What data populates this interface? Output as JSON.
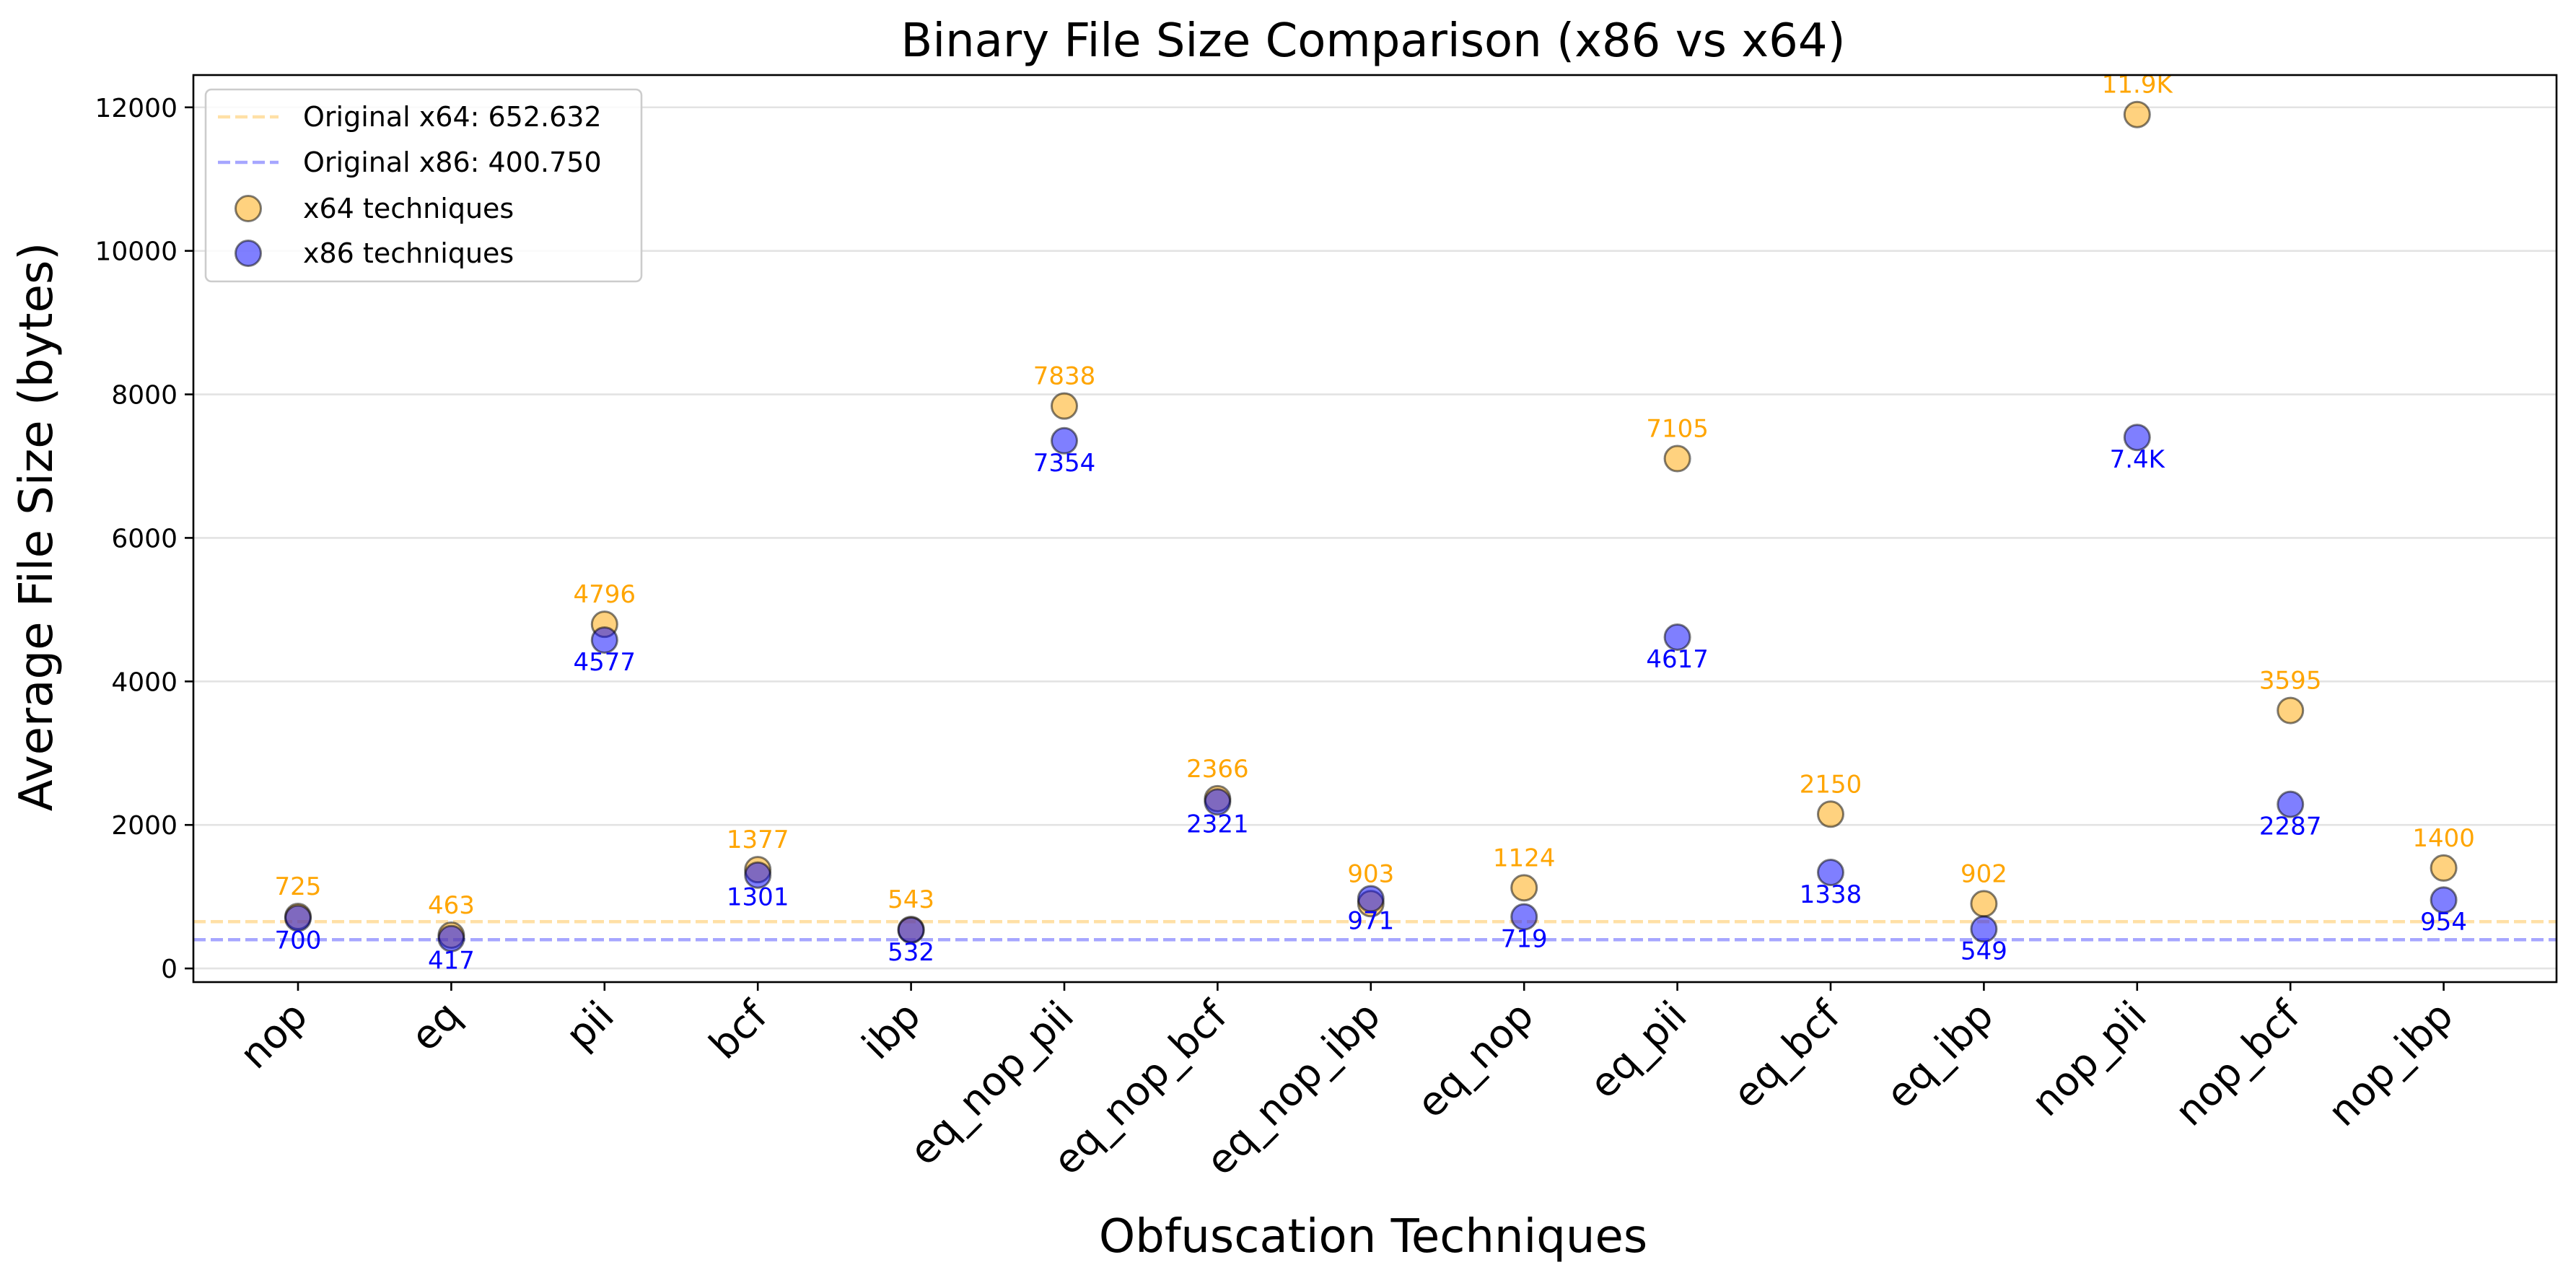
{
  "chart_data": {
    "type": "scatter",
    "title": "Binary File Size Comparison (x86 vs x64)",
    "xlabel": "Obfuscation Techniques",
    "ylabel": "Average File Size (bytes)",
    "ylim": [
      -190,
      12450
    ],
    "yticks": [
      0,
      2000,
      4000,
      6000,
      8000,
      10000,
      12000
    ],
    "ytick_labels": [
      "0",
      "2000",
      "4000",
      "6000",
      "8000",
      "10000",
      "12000"
    ],
    "grid": "horizontal",
    "legend_position": "top-left",
    "categories": [
      "nop",
      "eq",
      "pii",
      "bcf",
      "ibp",
      "eq_nop_pii",
      "eq_nop_bcf",
      "eq_nop_ibp",
      "eq_nop",
      "eq_pii",
      "eq_bcf",
      "eq_ibp",
      "nop_pii",
      "nop_bcf",
      "nop_ibp"
    ],
    "series": [
      {
        "name": "x64 techniques",
        "color": "#ffa500",
        "values": [
          725,
          463,
          4796,
          1377,
          543,
          7838,
          2366,
          903,
          1124,
          7105,
          2150,
          902,
          11900,
          3595,
          1400
        ],
        "labels": [
          "725",
          "463",
          "4796",
          "1377",
          "543",
          "7838",
          "2366",
          "903",
          "1124",
          "7105",
          "2150",
          "902",
          "11.9K",
          "3595",
          "1400"
        ]
      },
      {
        "name": "x86 techniques",
        "color": "#0000ff",
        "values": [
          700,
          417,
          4577,
          1301,
          532,
          7354,
          2321,
          971,
          719,
          4617,
          1338,
          549,
          7400,
          2287,
          954
        ],
        "labels": [
          "700",
          "417",
          "4577",
          "1301",
          "532",
          "7354",
          "2321",
          "971",
          "719",
          "4617",
          "1338",
          "549",
          "7.4K",
          "2287",
          "954"
        ]
      }
    ],
    "reference_lines": [
      {
        "label": "Original x64: 652.632",
        "value": 652.632,
        "color": "#ffa500"
      },
      {
        "label": "Original x86: 400.750",
        "value": 400.75,
        "color": "#0000ff"
      }
    ]
  }
}
